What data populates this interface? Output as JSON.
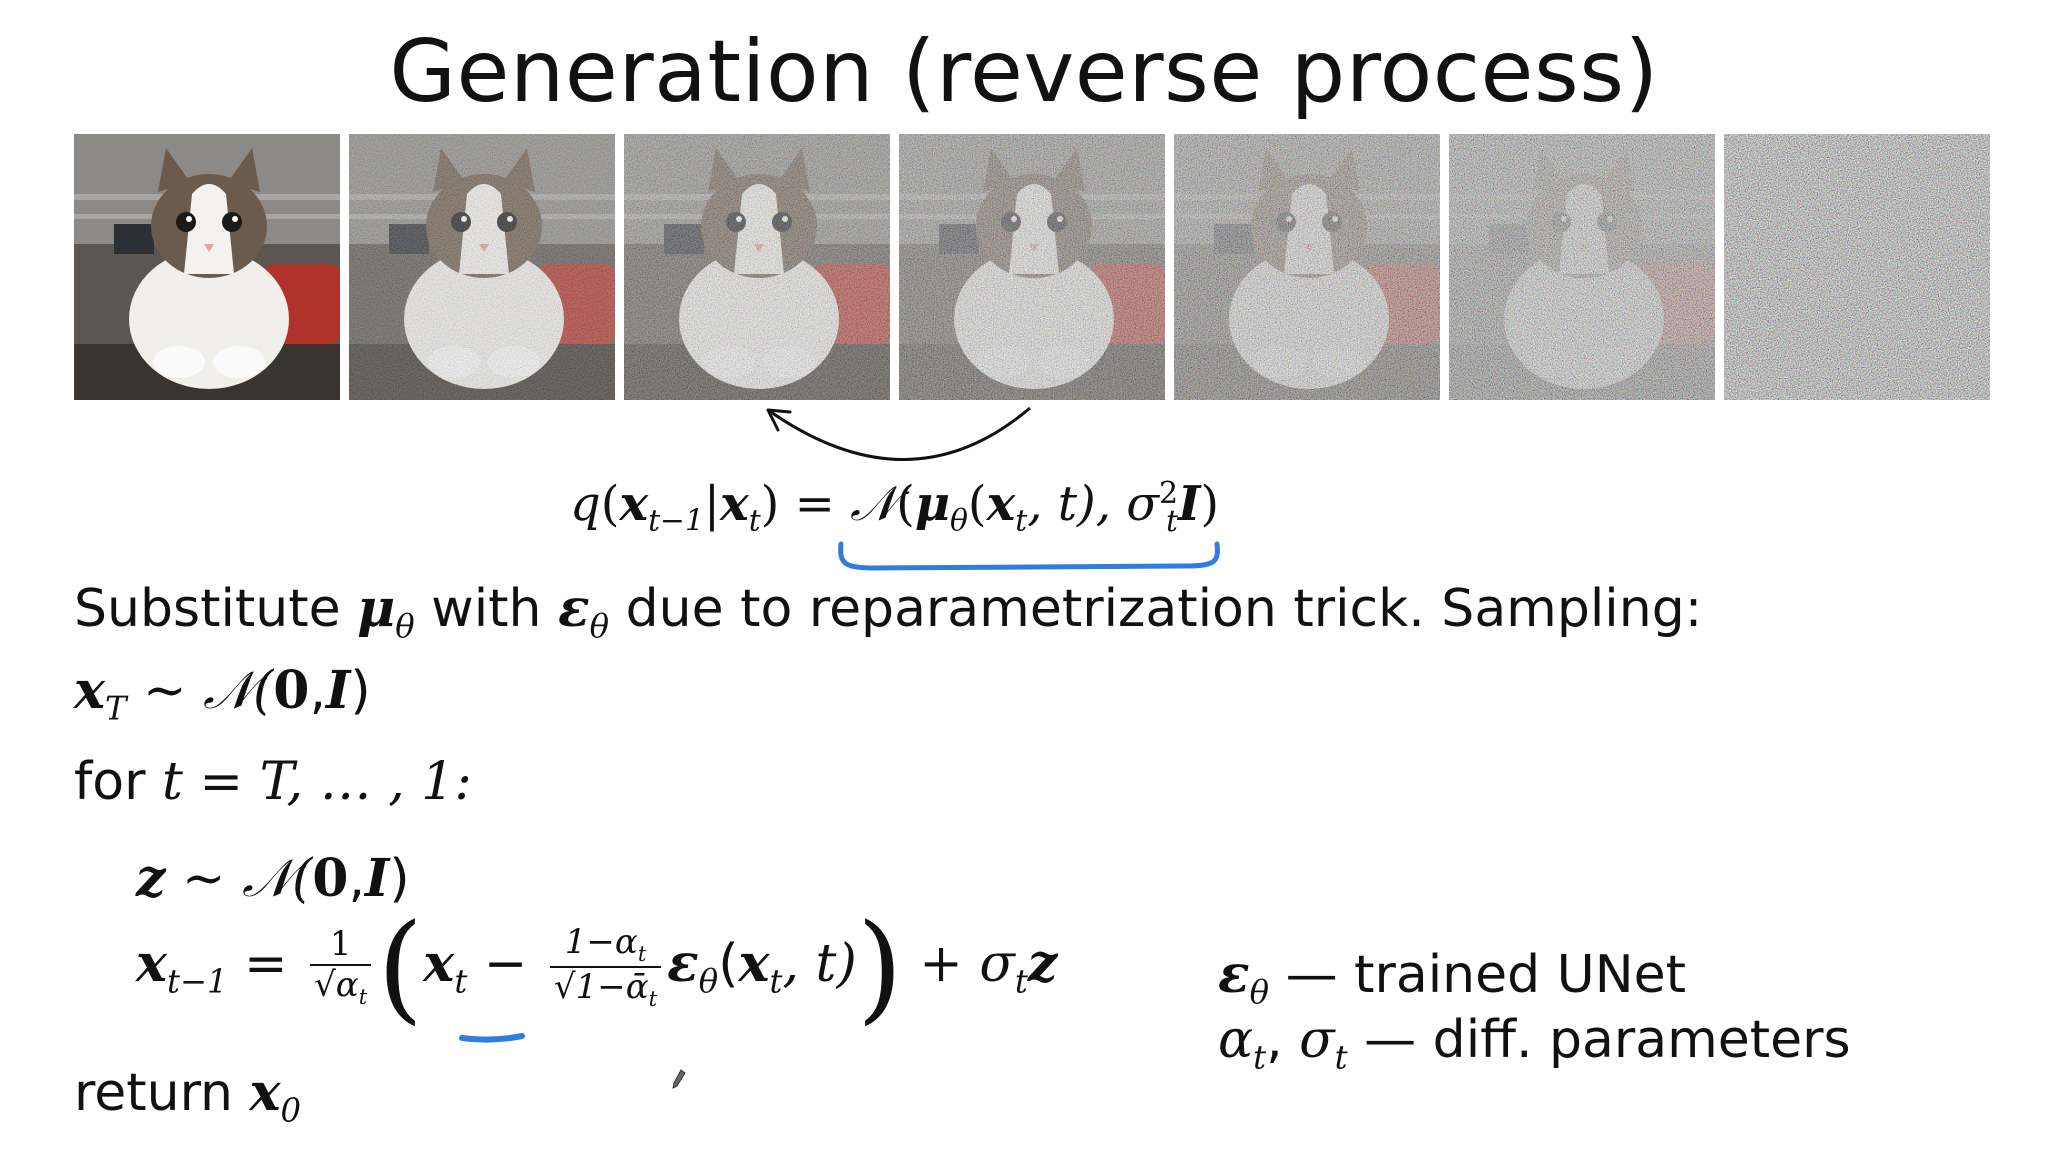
{
  "slide": {
    "title": "Generation (reverse process)"
  },
  "images": [
    {
      "name": "clean-cat",
      "noise_level": 0.0
    },
    {
      "name": "noisy-cat-1",
      "noise_level": 0.35
    },
    {
      "name": "noisy-cat-2",
      "noise_level": 0.5
    },
    {
      "name": "noisy-cat-3",
      "noise_level": 0.62
    },
    {
      "name": "noisy-cat-4",
      "noise_level": 0.74
    },
    {
      "name": "noisy-cat-5",
      "noise_level": 0.86
    },
    {
      "name": "pure-noise",
      "noise_level": 1.0
    }
  ],
  "equation_q": {
    "q": "q",
    "paren_open": "(",
    "x": "x",
    "t_minus_1": "t−1",
    "bar": "|",
    "x2": "x",
    "t": "t",
    "close_eq": ") = ",
    "N": "𝒩",
    "mu_open": "(",
    "mu": "μ",
    "theta": "θ",
    "arg_open": "(",
    "x3": "x",
    "t2": "t",
    "arg_rest": ", t), σ",
    "sq": "2",
    "sub_t": "t",
    "I": "I",
    "end": ")"
  },
  "text": {
    "substitute_1": "Substitute ",
    "mu": "μ",
    "theta1": "θ",
    "with": " with ",
    "eps": "ε",
    "theta2": "θ",
    "substitute_2": " due to reparametrization trick. Sampling:",
    "xT_x": "x",
    "xT_sub": "T",
    "xT_rest": " ~ 𝒩(",
    "zero": "0",
    "comma": ",",
    "I": "I",
    "close": ")",
    "for": "for ",
    "for_t": "t",
    "for_rest": " = T, … , 1:",
    "z": "z",
    "z_rest": " ~ 𝒩(",
    "z_zero": "0",
    "z_comma": ",",
    "z_I": "I",
    "z_close": ")",
    "update_x": "x",
    "update_sub": "t−1",
    "update_eq": " = ",
    "frac1_num": "1",
    "frac1_den": "√α",
    "frac1_den_sub": "t",
    "paren_l": "(",
    "inner_x": "x",
    "inner_t": "t",
    "minus": " − ",
    "frac2_num": "1−α",
    "frac2_num_sub": "t",
    "frac2_den": "√1−ᾱ",
    "frac2_den_sub": "t",
    "eps2": "ε",
    "theta3": "θ",
    "eps_args_open": "(",
    "eps_x": "x",
    "eps_t": "t",
    "eps_args_rest": ", t)",
    "paren_r": ")",
    "plus_sigma": " + σ",
    "sigma_sub": "t",
    "z2": "z",
    "return": "return ",
    "return_x": "x",
    "return_sub": "0"
  },
  "legend": {
    "eps": "ε",
    "theta": "θ",
    "eps_desc": " — trained UNet",
    "alpha": "α",
    "alpha_sub": "t",
    "comma": ", ",
    "sigma": "σ",
    "sigma_sub": "t",
    "alpha_desc": " — diff. parameters"
  },
  "colors": {
    "annotation_blue": "#2f7de1",
    "text": "#111111"
  }
}
